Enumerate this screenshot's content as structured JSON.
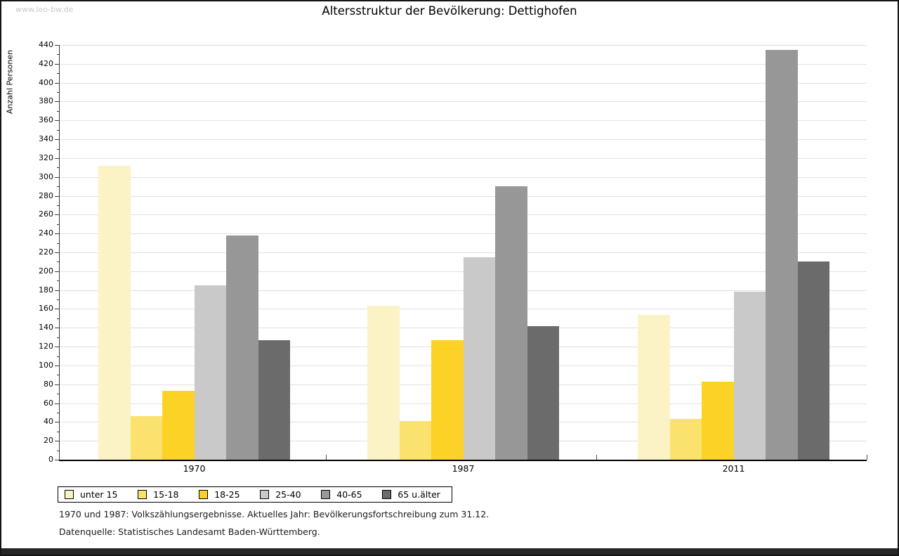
{
  "watermark": "www.leo-bw.de",
  "title": "Altersstruktur der Bevölkerung: Dettighofen",
  "chart_data": {
    "type": "bar",
    "title": "Altersstruktur der Bevölkerung: Dettighofen",
    "xlabel": "",
    "ylabel": "Anzahl Personen",
    "categories": [
      "1970",
      "1987",
      "2011"
    ],
    "series": [
      {
        "name": "unter 15",
        "color": "#FBF3C6",
        "values": [
          312,
          163,
          154
        ]
      },
      {
        "name": "15-18",
        "color": "#FBE26E",
        "values": [
          46,
          41,
          43
        ]
      },
      {
        "name": "18-25",
        "color": "#FCD227",
        "values": [
          73,
          127,
          83
        ]
      },
      {
        "name": "25-40",
        "color": "#C9C9C9",
        "values": [
          185,
          215,
          178
        ]
      },
      {
        "name": "40-65",
        "color": "#979797",
        "values": [
          238,
          290,
          435
        ]
      },
      {
        "name": "65 u.älter",
        "color": "#6B6B6B",
        "values": [
          127,
          142,
          210
        ]
      }
    ],
    "ylim": [
      0,
      440
    ],
    "ytick_step": 20,
    "ytick_minor_step": 10,
    "grid": true,
    "legend_position": "bottom-left"
  },
  "footer": {
    "line1": "1970 und 1987: Volkszählungsergebnisse. Aktuelles Jahr: Bevölkerungsfortschreibung zum 31.12.",
    "line2": "Datenquelle: Statistisches Landesamt Baden-Württemberg."
  },
  "colors": {
    "grid": "#E1E1E1",
    "axis": "#3a3a3a",
    "xaxis": "#000000",
    "watermark": "#C9C9C9"
  }
}
